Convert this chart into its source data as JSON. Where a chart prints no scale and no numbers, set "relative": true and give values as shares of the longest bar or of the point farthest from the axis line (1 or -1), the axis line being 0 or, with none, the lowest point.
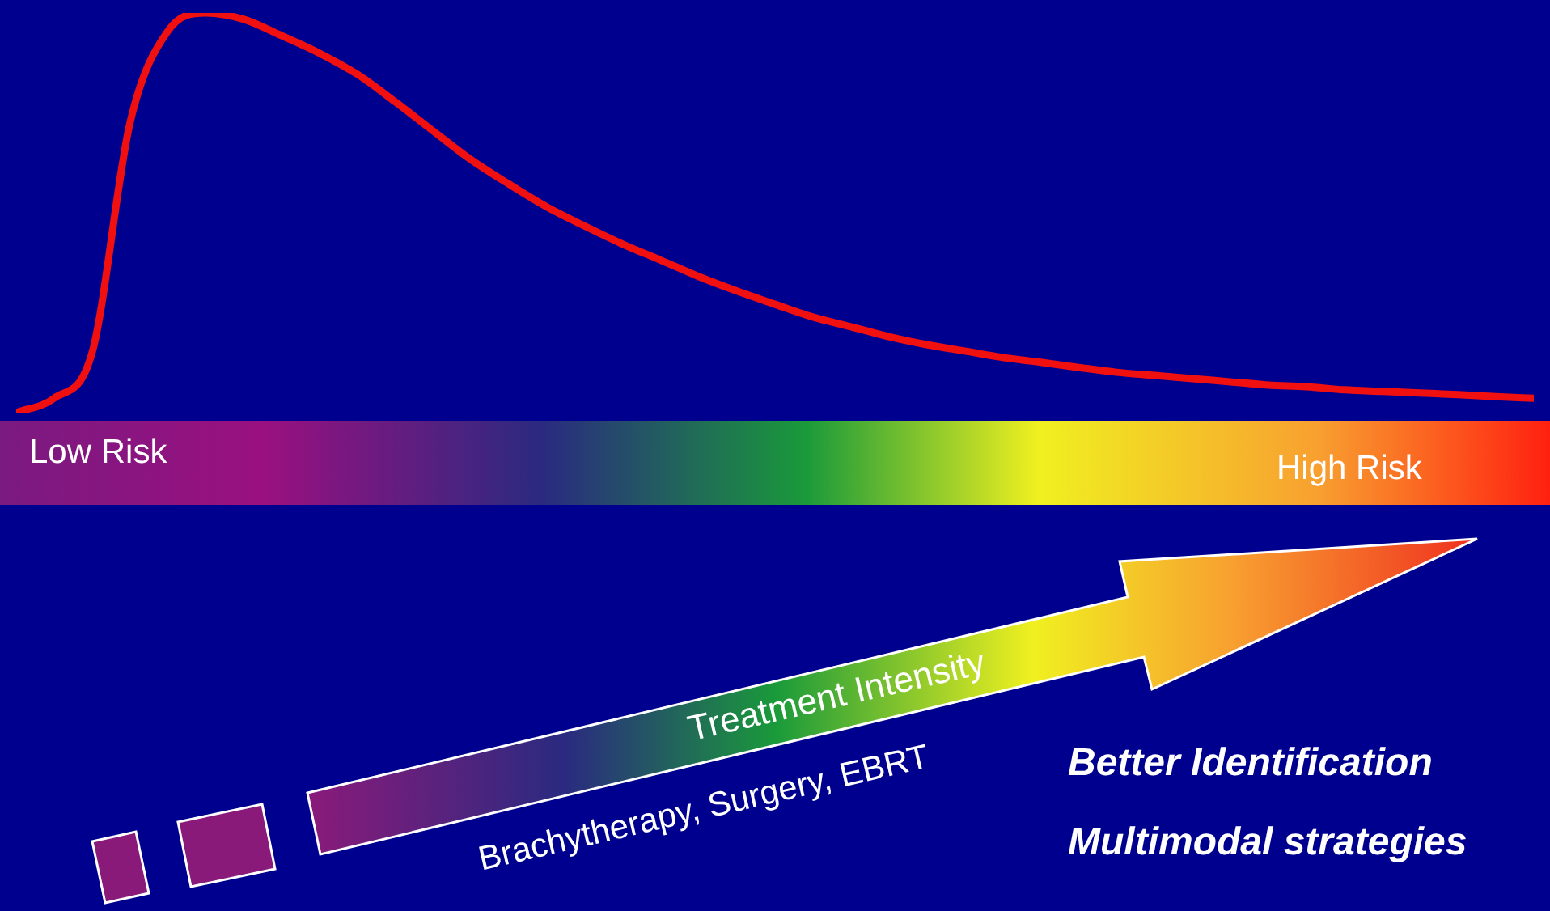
{
  "chart_data": {
    "type": "line",
    "relative": true,
    "legend": false,
    "grid": false,
    "marker": "none",
    "line_style": "solid",
    "categories": [
      null,
      null,
      null,
      null,
      null,
      null,
      null,
      null,
      null,
      null,
      null,
      null,
      null,
      null,
      null,
      null,
      null,
      null,
      null,
      null,
      null,
      null,
      null,
      null,
      null,
      null,
      null,
      null,
      null,
      null,
      null,
      null,
      null,
      null,
      null,
      null,
      null,
      null,
      null,
      null,
      null
    ],
    "series": [
      {
        "color": "#f01010",
        "values": [
          0,
          0.036,
          0.15,
          0.725,
          0.955,
          1,
          0.984,
          0.943,
          0.899,
          0.846,
          0.777,
          0.704,
          0.632,
          0.571,
          0.514,
          0.466,
          0.421,
          0.381,
          0.34,
          0.304,
          0.271,
          0.239,
          0.215,
          0.19,
          0.17,
          0.154,
          0.138,
          0.126,
          0.113,
          0.101,
          0.093,
          0.085,
          0.077,
          0.069,
          0.065,
          0.057,
          0.053,
          0.049,
          0.045,
          0.04,
          0.036
        ]
      }
    ],
    "annotations": [
      "Low Risk",
      "High Risk",
      "Treatment Intensity",
      "Brachytherapy, Surgery, EBRT",
      "Better Identification",
      "Multimodal strategies"
    ]
  }
}
